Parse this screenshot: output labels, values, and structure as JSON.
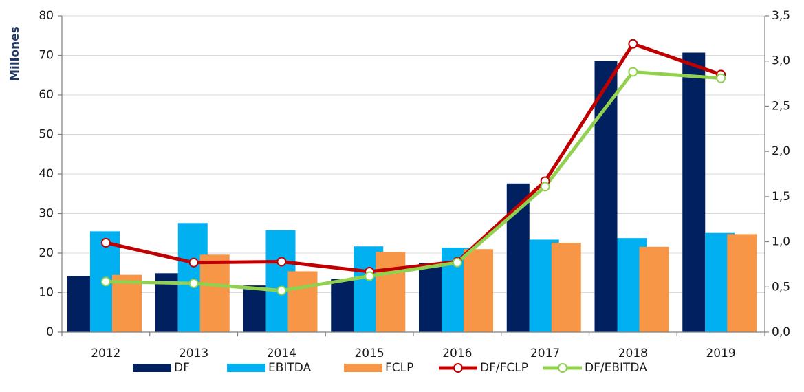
{
  "chart_data": {
    "type": "bar_line",
    "y_axis_label": "Millones",
    "categories": [
      "2012",
      "2013",
      "2014",
      "2015",
      "2016",
      "2017",
      "2018",
      "2019"
    ],
    "series": [
      {
        "name": "DF",
        "type": "bar",
        "color": "#002060",
        "values": [
          14.2,
          14.9,
          11.8,
          13.5,
          17.5,
          37.6,
          68.6,
          70.7
        ]
      },
      {
        "name": "EBITDA",
        "type": "bar",
        "color": "#00B0F0",
        "values": [
          25.5,
          27.6,
          25.8,
          21.7,
          21.4,
          23.4,
          23.8,
          25.1
        ]
      },
      {
        "name": "FCLP",
        "type": "bar",
        "color": "#F79646",
        "values": [
          14.5,
          19.6,
          15.4,
          20.3,
          21.0,
          22.6,
          21.6,
          24.8
        ]
      },
      {
        "name": "DF/FCLP",
        "type": "line",
        "axis": "y2",
        "color": "#C00000",
        "values": [
          0.99,
          0.77,
          0.78,
          0.67,
          0.78,
          1.67,
          3.19,
          2.85
        ]
      },
      {
        "name": "DF/EBITDA",
        "type": "line",
        "axis": "y2",
        "color": "#92D050",
        "values": [
          0.56,
          0.54,
          0.46,
          0.62,
          0.77,
          1.61,
          2.88,
          2.81
        ]
      }
    ],
    "ylim": [
      0,
      80
    ],
    "yticks": [
      0,
      10,
      20,
      30,
      40,
      50,
      60,
      70,
      80
    ],
    "y2lim": [
      0,
      3.5
    ],
    "y2ticks": [
      {
        "value": 0,
        "label": "0,0"
      },
      {
        "value": 0.5,
        "label": "0,5"
      },
      {
        "value": 1,
        "label": "1,0"
      },
      {
        "value": 1.5,
        "label": "1,5"
      },
      {
        "value": 2,
        "label": "2,0"
      },
      {
        "value": 2.5,
        "label": "2,5"
      },
      {
        "value": 3,
        "label": "3,0"
      },
      {
        "value": 3.5,
        "label": "3,5"
      }
    ],
    "grid": true,
    "legend": "bottom"
  }
}
